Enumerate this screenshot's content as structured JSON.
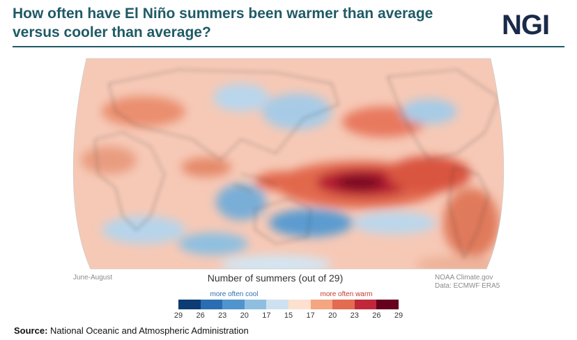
{
  "title": "How often have El Niño summers been warmer than average versus cooler than average?",
  "logo": "NGI",
  "season_note": "June-August",
  "credit_lines": [
    "NOAA Climate.gov",
    "Data: ECMWF ERA5"
  ],
  "legend": {
    "title": "Number of summers (out of 29)",
    "cool_label": "more often cool",
    "warm_label": "more often warm",
    "tick_labels": [
      "29",
      "26",
      "23",
      "20",
      "17",
      "15",
      "17",
      "20",
      "23",
      "26",
      "29"
    ],
    "colors": [
      "#0d3b73",
      "#2a6db3",
      "#4f94cd",
      "#8fbfe0",
      "#cde1f0",
      "#fde0cf",
      "#f4a582",
      "#e26b50",
      "#c0283a",
      "#67001f"
    ]
  },
  "source": {
    "label": "Source:",
    "text": "National Oceanic and Atmospheric Administration"
  },
  "map_colors": {
    "ocean_base": "#f7cfbe",
    "strong_warm": "#a5152a",
    "warm": "#e26b50",
    "cool": "#8fbfe0",
    "strong_cool": "#2a6db3",
    "coastline": "#3a3a3a"
  }
}
